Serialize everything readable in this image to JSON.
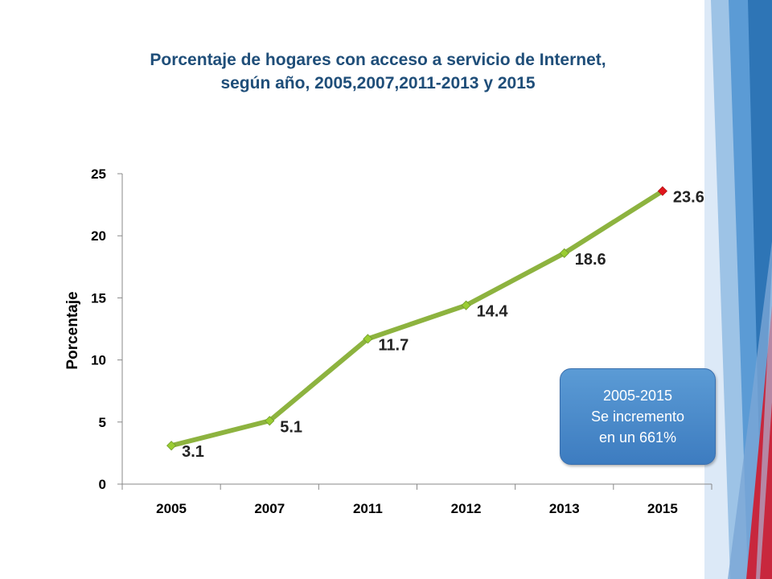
{
  "slide": {
    "title_line1": "Porcentaje de hogares con acceso a servicio de Internet,",
    "title_line2": "según año, 2005,2007,2011-2013 y 2015"
  },
  "callout": {
    "line1": "2005-2015",
    "line2": "Se incremento",
    "line3": "en un 661%"
  },
  "colors": {
    "title": "#1f4e79",
    "line": "#8db33f",
    "marker": "#9acd32",
    "marker_last": "#e0161c",
    "callout_bg": "#4a8cd0",
    "deco_blue": "#2e75b6",
    "deco_red": "#c8273d"
  },
  "chart_data": {
    "type": "line",
    "title": "Porcentaje de hogares con acceso a servicio de Internet, según año, 2005,2007,2011-2013 y 2015",
    "xlabel": "",
    "ylabel": "Porcentaje",
    "categories": [
      "2005",
      "2007",
      "2011",
      "2012",
      "2013",
      "2015"
    ],
    "series": [
      {
        "values": [
          3.1,
          5.1,
          11.7,
          14.4,
          18.6,
          23.6
        ]
      }
    ],
    "data_labels": [
      "3.1",
      "5.1",
      "11.7",
      "14.4",
      "18.6",
      "23.6"
    ],
    "ylim": [
      0,
      25
    ],
    "yticks": [
      0,
      5,
      10,
      15,
      20,
      25
    ],
    "grid": false,
    "legend": "none"
  }
}
